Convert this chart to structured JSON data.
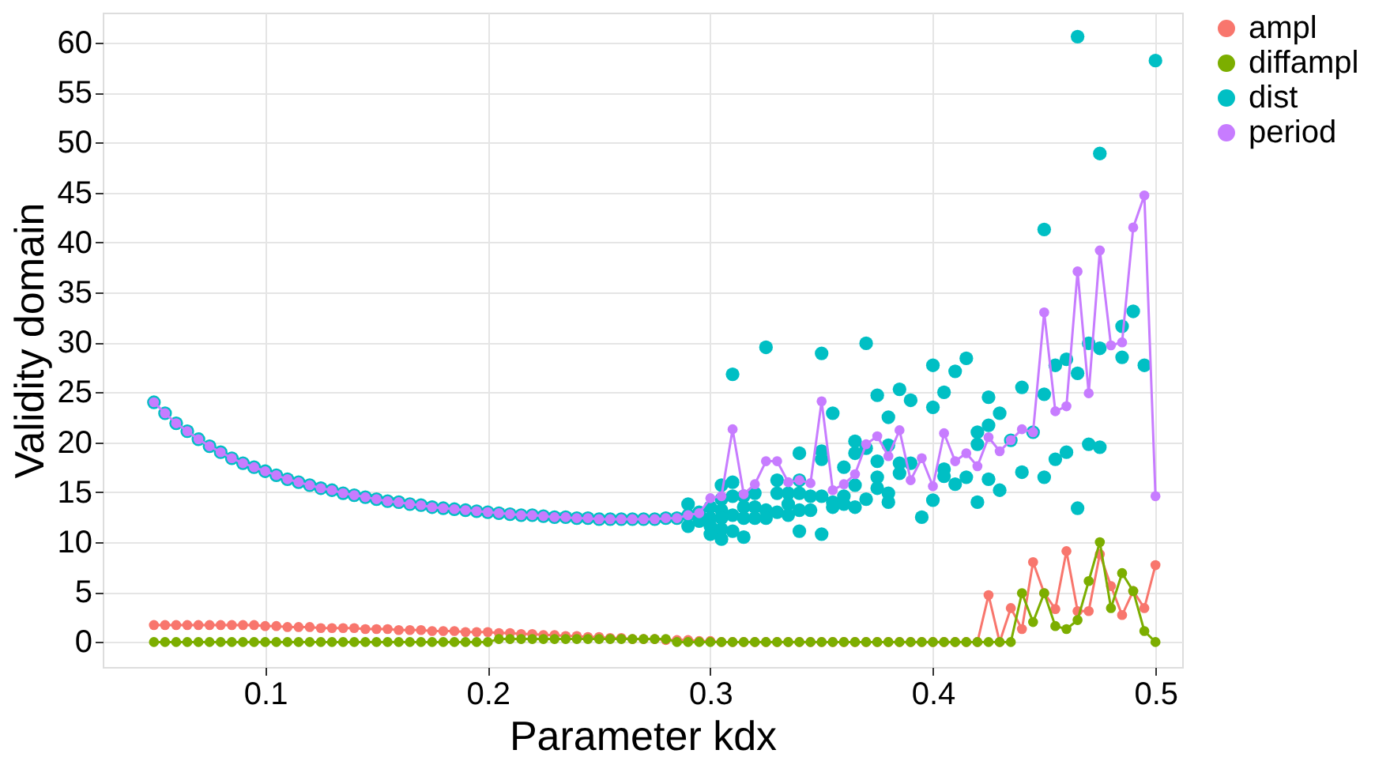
{
  "chart_data": {
    "type": "line",
    "xlabel": "Parameter kdx",
    "ylabel": "Validity domain",
    "x": [
      0.05,
      0.055,
      0.06,
      0.065,
      0.07,
      0.075,
      0.08,
      0.085,
      0.09,
      0.095,
      0.1,
      0.105,
      0.11,
      0.115,
      0.12,
      0.125,
      0.13,
      0.135,
      0.14,
      0.145,
      0.15,
      0.155,
      0.16,
      0.165,
      0.17,
      0.175,
      0.18,
      0.185,
      0.19,
      0.195,
      0.2,
      0.205,
      0.21,
      0.215,
      0.22,
      0.225,
      0.23,
      0.235,
      0.24,
      0.245,
      0.25,
      0.255,
      0.26,
      0.265,
      0.27,
      0.275,
      0.28,
      0.285,
      0.29,
      0.295,
      0.3,
      0.305,
      0.31,
      0.315,
      0.32,
      0.325,
      0.33,
      0.335,
      0.34,
      0.345,
      0.35,
      0.355,
      0.36,
      0.365,
      0.37,
      0.375,
      0.38,
      0.385,
      0.39,
      0.395,
      0.4,
      0.405,
      0.41,
      0.415,
      0.42,
      0.425,
      0.43,
      0.435,
      0.44,
      0.445,
      0.45,
      0.455,
      0.46,
      0.465,
      0.47,
      0.475,
      0.48,
      0.485,
      0.49,
      0.495,
      0.5
    ],
    "series": [
      {
        "name": "ampl",
        "color": "#f8766d",
        "values": [
          1.7,
          1.7,
          1.7,
          1.7,
          1.7,
          1.7,
          1.7,
          1.7,
          1.7,
          1.7,
          1.6,
          1.6,
          1.5,
          1.5,
          1.5,
          1.4,
          1.4,
          1.4,
          1.4,
          1.3,
          1.3,
          1.3,
          1.2,
          1.2,
          1.2,
          1.1,
          1.1,
          1.1,
          1.0,
          1.0,
          1.0,
          0.9,
          0.9,
          0.8,
          0.8,
          0.7,
          0.7,
          0.6,
          0.6,
          0.5,
          0.5,
          0.4,
          0.4,
          0.3,
          0.3,
          0.3,
          0.2,
          0.2,
          0.2,
          0.1,
          0.1,
          0,
          0,
          0,
          0,
          0,
          0,
          0,
          0,
          0,
          0,
          0,
          0,
          0,
          0,
          0,
          0,
          0,
          0,
          0,
          0,
          0,
          0,
          0,
          0,
          4.7,
          0,
          3.4,
          1.3,
          8.0,
          4.9,
          3.3,
          9.1,
          3.1,
          3.1,
          8.8,
          5.6,
          2.7,
          5.1,
          3.4,
          7.7
        ]
      },
      {
        "name": "diffampl",
        "color": "#7cae00",
        "values": [
          0,
          0,
          0,
          0,
          0,
          0,
          0,
          0,
          0,
          0,
          0,
          0,
          0,
          0,
          0,
          0,
          0,
          0,
          0,
          0,
          0,
          0,
          0,
          0,
          0,
          0,
          0,
          0,
          0,
          0,
          0,
          0.3,
          0.3,
          0.3,
          0.3,
          0.3,
          0.3,
          0.3,
          0.3,
          0.3,
          0.3,
          0.3,
          0.3,
          0.3,
          0.3,
          0.3,
          0.3,
          0,
          0,
          0,
          0,
          0,
          0,
          0,
          0,
          0,
          0,
          0,
          0,
          0,
          0,
          0,
          0,
          0,
          0,
          0,
          0,
          0,
          0,
          0,
          0,
          0,
          0,
          0,
          0,
          0,
          0,
          0,
          4.9,
          2.0,
          4.9,
          1.6,
          1.3,
          2.2,
          6.1,
          10.0,
          3.4,
          6.9,
          5.1,
          1.1,
          0
        ]
      },
      {
        "name": "dist",
        "color": "#00bfc4",
        "type": "scatter",
        "x": [
          0.05,
          0.055,
          0.06,
          0.065,
          0.07,
          0.075,
          0.08,
          0.085,
          0.09,
          0.095,
          0.1,
          0.105,
          0.11,
          0.115,
          0.12,
          0.125,
          0.13,
          0.135,
          0.14,
          0.145,
          0.15,
          0.155,
          0.16,
          0.165,
          0.17,
          0.175,
          0.18,
          0.185,
          0.19,
          0.195,
          0.2,
          0.205,
          0.21,
          0.215,
          0.22,
          0.225,
          0.23,
          0.235,
          0.24,
          0.245,
          0.25,
          0.255,
          0.26,
          0.265,
          0.27,
          0.275,
          0.28,
          0.285,
          0.29,
          0.29,
          0.29,
          0.295,
          0.295,
          0.3,
          0.3,
          0.3,
          0.3,
          0.305,
          0.305,
          0.305,
          0.305,
          0.305,
          0.305,
          0.31,
          0.31,
          0.31,
          0.31,
          0.31,
          0.315,
          0.315,
          0.315,
          0.315,
          0.32,
          0.32,
          0.32,
          0.325,
          0.325,
          0.325,
          0.33,
          0.33,
          0.33,
          0.335,
          0.335,
          0.335,
          0.34,
          0.34,
          0.34,
          0.34,
          0.34,
          0.345,
          0.345,
          0.35,
          0.35,
          0.35,
          0.35,
          0.35,
          0.355,
          0.355,
          0.355,
          0.36,
          0.36,
          0.36,
          0.365,
          0.365,
          0.365,
          0.365,
          0.37,
          0.37,
          0.37,
          0.375,
          0.375,
          0.375,
          0.375,
          0.38,
          0.38,
          0.38,
          0.38,
          0.385,
          0.385,
          0.385,
          0.39,
          0.39,
          0.395,
          0.4,
          0.4,
          0.4,
          0.405,
          0.405,
          0.405,
          0.41,
          0.41,
          0.415,
          0.415,
          0.42,
          0.42,
          0.42,
          0.425,
          0.425,
          0.425,
          0.43,
          0.43,
          0.435,
          0.44,
          0.44,
          0.445,
          0.45,
          0.45,
          0.45,
          0.455,
          0.455,
          0.46,
          0.46,
          0.465,
          0.465,
          0.465,
          0.47,
          0.47,
          0.475,
          0.475,
          0.475,
          0.485,
          0.485,
          0.49,
          0.495,
          0.5
        ],
        "values": [
          24.0,
          22.9,
          21.9,
          21.1,
          20.3,
          19.6,
          19.0,
          18.4,
          17.9,
          17.5,
          17.1,
          16.7,
          16.3,
          16.0,
          15.7,
          15.4,
          15.2,
          14.9,
          14.7,
          14.5,
          14.3,
          14.1,
          14.0,
          13.8,
          13.7,
          13.5,
          13.4,
          13.3,
          13.2,
          13.1,
          13.0,
          12.9,
          12.8,
          12.7,
          12.7,
          12.6,
          12.5,
          12.5,
          12.4,
          12.4,
          12.3,
          12.3,
          12.3,
          12.3,
          12.3,
          12.3,
          12.4,
          12.4,
          13.8,
          12.7,
          11.6,
          13.0,
          12.1,
          13.5,
          12.4,
          11.6,
          10.8,
          15.7,
          14.3,
          13.2,
          12.4,
          11.3,
          10.3,
          26.8,
          16.0,
          14.6,
          12.7,
          11.1,
          14.6,
          13.5,
          12.4,
          10.5,
          14.9,
          13.5,
          12.4,
          29.5,
          13.2,
          12.4,
          16.2,
          14.9,
          13.0,
          14.9,
          13.8,
          12.7,
          18.9,
          16.2,
          14.9,
          13.2,
          11.1,
          14.6,
          13.2,
          28.9,
          19.1,
          18.3,
          14.6,
          10.8,
          22.9,
          14.0,
          13.5,
          17.5,
          14.6,
          13.8,
          20.1,
          18.9,
          15.7,
          13.5,
          29.9,
          19.4,
          14.3,
          24.7,
          18.1,
          16.5,
          15.4,
          22.5,
          19.7,
          14.9,
          14.0,
          25.3,
          17.9,
          16.9,
          24.2,
          17.9,
          12.5,
          27.7,
          23.5,
          14.2,
          25.0,
          17.3,
          16.6,
          27.1,
          15.8,
          28.4,
          16.5,
          21.0,
          19.8,
          14.0,
          24.5,
          21.7,
          16.3,
          22.9,
          15.2,
          20.2,
          25.5,
          17.0,
          21.0,
          41.3,
          24.8,
          16.5,
          27.7,
          18.3,
          28.3,
          19.0,
          60.6,
          26.9,
          13.4,
          29.9,
          19.8,
          48.9,
          29.4,
          19.5,
          31.6,
          28.5,
          33.1,
          27.7,
          58.2
        ]
      },
      {
        "name": "period",
        "color": "#c77cff",
        "values": [
          24.0,
          22.9,
          21.9,
          21.1,
          20.3,
          19.6,
          19.0,
          18.4,
          17.9,
          17.5,
          17.1,
          16.7,
          16.3,
          16.0,
          15.7,
          15.4,
          15.2,
          14.9,
          14.7,
          14.5,
          14.3,
          14.1,
          14.0,
          13.8,
          13.7,
          13.5,
          13.4,
          13.3,
          13.2,
          13.1,
          13.0,
          12.9,
          12.8,
          12.7,
          12.7,
          12.6,
          12.5,
          12.5,
          12.4,
          12.4,
          12.3,
          12.3,
          12.3,
          12.3,
          12.3,
          12.3,
          12.4,
          12.4,
          12.7,
          12.9,
          14.4,
          14.6,
          21.3,
          14.8,
          15.8,
          18.1,
          18.1,
          16.0,
          16.2,
          15.9,
          24.1,
          15.2,
          15.8,
          16.8,
          19.8,
          20.6,
          18.6,
          21.2,
          16.2,
          18.4,
          15.6,
          20.9,
          18.1,
          18.9,
          17.6,
          20.5,
          19.1,
          20.2,
          21.3,
          21.0,
          33.0,
          23.1,
          23.6,
          37.1,
          24.9,
          39.2,
          29.7,
          30.0,
          41.5,
          44.7,
          14.6
        ]
      }
    ],
    "xlim": [
      0.027,
      0.512
    ],
    "xticks": [
      0.1,
      0.2,
      0.3,
      0.4,
      0.5
    ],
    "ylim": [
      -2.5,
      63
    ],
    "yticks": [
      0,
      5,
      10,
      15,
      20,
      25,
      30,
      35,
      40,
      45,
      50,
      55,
      60
    ],
    "grid": true,
    "legend": "right",
    "marker": "circle",
    "line_style": "solid"
  }
}
